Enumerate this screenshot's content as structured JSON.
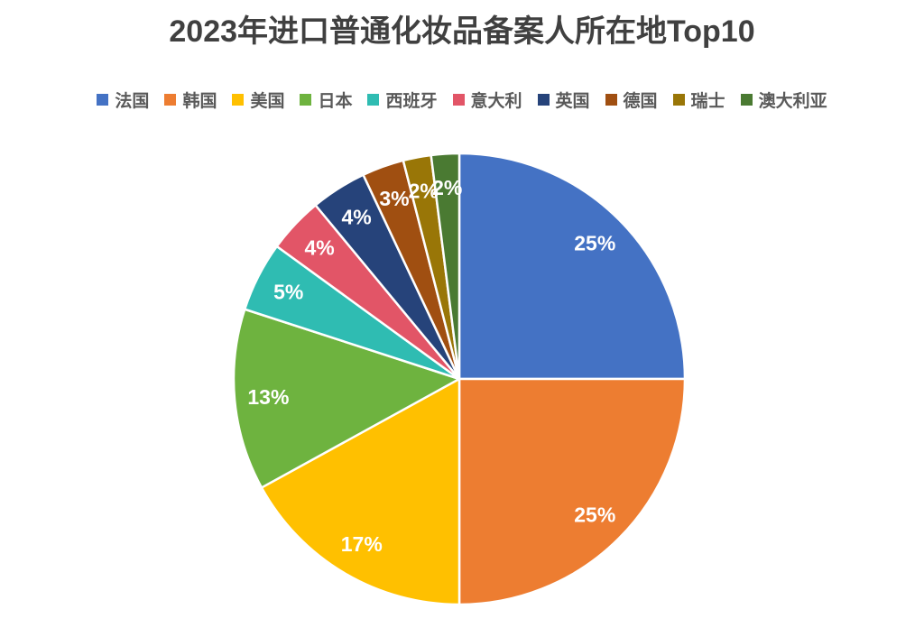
{
  "chart_data": {
    "type": "pie",
    "title": "2023年进口普通化妆品备案人所在地Top10",
    "legend_position": "top",
    "direction": "clockwise",
    "start_angle_deg": 0,
    "unit": "%",
    "categories": [
      "法国",
      "韩国",
      "美国",
      "日本",
      "西班牙",
      "意大利",
      "英国",
      "德国",
      "瑞士",
      "澳大利亚"
    ],
    "values": [
      25,
      25,
      17,
      13,
      5,
      4,
      4,
      3,
      2,
      2
    ],
    "labels": [
      "25%",
      "25%",
      "17%",
      "13%",
      "5%",
      "4%",
      "4%",
      "3%",
      "2%",
      "2%"
    ],
    "colors": [
      "#4472C4",
      "#ED7D31",
      "#FFC000",
      "#6EB33F",
      "#2FBCB2",
      "#E25567",
      "#26437A",
      "#A04F11",
      "#997607",
      "#4A7A32"
    ],
    "data_label_color": "#FFFFFF",
    "title_color": "#404040",
    "legend_text_color": "#595959",
    "background_color": "#FFFFFF",
    "slice_border_color": "#FFFFFF"
  }
}
